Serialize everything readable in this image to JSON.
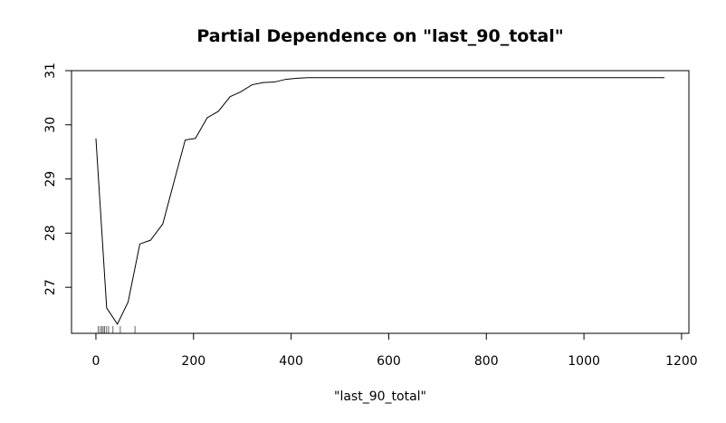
{
  "chart_data": {
    "type": "line",
    "title": "Partial Dependence on \"last_90_total\"",
    "xlabel": "\"last_90_total\"",
    "ylabel": "",
    "xlim": [
      -50,
      1215
    ],
    "ylim": [
      26.15,
      31.0
    ],
    "x_ticks": [
      0,
      200,
      400,
      600,
      800,
      1000,
      1200
    ],
    "y_ticks": [
      27,
      28,
      29,
      30,
      31
    ],
    "grid": false,
    "series": [
      {
        "x": [
          0,
          22,
          44,
          66,
          90,
          112,
          137,
          160,
          183,
          204,
          228,
          251,
          275,
          297,
          320,
          343,
          366,
          389,
          412,
          435,
          458,
          600,
          800,
          1000,
          1165
        ],
        "y": [
          29.75,
          26.62,
          26.32,
          26.73,
          27.8,
          27.87,
          28.17,
          28.95,
          29.72,
          29.75,
          30.13,
          30.25,
          30.52,
          30.61,
          30.74,
          30.78,
          30.79,
          30.84,
          30.86,
          30.87,
          30.87,
          30.87,
          30.87,
          30.87,
          30.87
        ]
      }
    ],
    "rug": [
      5,
      9,
      12,
      15,
      18,
      22,
      26,
      35,
      50,
      80
    ]
  }
}
